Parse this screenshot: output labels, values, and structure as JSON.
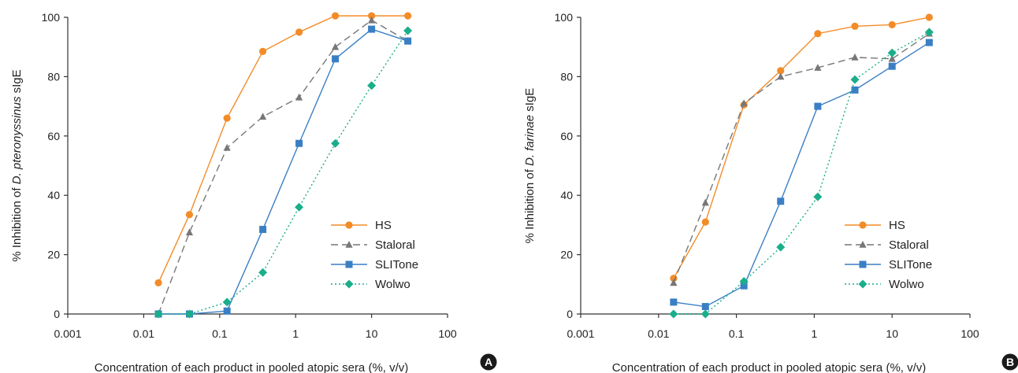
{
  "chart_data": [
    {
      "type": "line",
      "panel": "A",
      "xscale": "log",
      "xlim": [
        0.001,
        100
      ],
      "ylim": [
        0,
        100
      ],
      "x_ticks": [
        "0.001",
        "0.01",
        "0.1",
        "1",
        "10",
        "100"
      ],
      "y_ticks": [
        "0",
        "20",
        "40",
        "60",
        "80",
        "100"
      ],
      "xlabel": "Concentration of each product in pooled atopic sera (%, v/v)",
      "ylabel_prefix": "% Inhibition of ",
      "ylabel_species": "D. pteronyssinus",
      "ylabel_suffix": " sIgE",
      "legend_position": "bottom-right",
      "grid": false,
      "series": [
        {
          "name": "HS",
          "color": "#F28C28",
          "marker": "circle",
          "dash": "solid",
          "x": [
            0.0156,
            0.04,
            0.125,
            0.37,
            1.11,
            3.33,
            10,
            30
          ],
          "y": [
            10.5,
            33.5,
            66,
            88.5,
            95,
            100.5,
            100.5,
            100.5
          ]
        },
        {
          "name": "Staloral",
          "color": "#777777",
          "marker": "triangle",
          "dash": "dashed",
          "x": [
            0.0156,
            0.04,
            0.125,
            0.37,
            1.11,
            3.33,
            10,
            30
          ],
          "y": [
            0,
            27.5,
            56,
            66.5,
            73,
            90,
            99,
            92
          ]
        },
        {
          "name": "SLITone",
          "color": "#3A7FC4",
          "marker": "square",
          "dash": "solid",
          "x": [
            0.0156,
            0.04,
            0.125,
            0.37,
            1.11,
            3.33,
            10,
            30
          ],
          "y": [
            0,
            0,
            1,
            28.5,
            57.5,
            86,
            96,
            92
          ]
        },
        {
          "name": "Wolwo",
          "color": "#1AAE8A",
          "marker": "diamond",
          "dash": "dotted",
          "x": [
            0.0156,
            0.04,
            0.125,
            0.37,
            1.11,
            3.33,
            10,
            30
          ],
          "y": [
            0,
            0,
            4,
            14,
            36,
            57.5,
            77,
            95.5
          ]
        }
      ]
    },
    {
      "type": "line",
      "panel": "B",
      "xscale": "log",
      "xlim": [
        0.001,
        100
      ],
      "ylim": [
        0,
        100
      ],
      "x_ticks": [
        "0.001",
        "0.01",
        "0.1",
        "1",
        "10",
        "100"
      ],
      "y_ticks": [
        "0",
        "20",
        "40",
        "60",
        "80",
        "100"
      ],
      "xlabel": "Concentration of each product in pooled atopic sera (%, v/v)",
      "ylabel_prefix": "% Inhibition of ",
      "ylabel_species": "D. farinae",
      "ylabel_suffix": " sIgE",
      "legend_position": "bottom-right",
      "grid": false,
      "series": [
        {
          "name": "HS",
          "color": "#F28C28",
          "marker": "circle",
          "dash": "solid",
          "x": [
            0.0156,
            0.04,
            0.125,
            0.37,
            1.11,
            3.33,
            10,
            30
          ],
          "y": [
            12,
            31,
            70.5,
            82,
            94.5,
            97,
            97.5,
            100
          ]
        },
        {
          "name": "Staloral",
          "color": "#777777",
          "marker": "triangle",
          "dash": "dashed",
          "x": [
            0.0156,
            0.04,
            0.125,
            0.37,
            1.11,
            3.33,
            10,
            30
          ],
          "y": [
            10.5,
            37.5,
            71,
            80,
            83,
            86.5,
            86,
            94.5
          ]
        },
        {
          "name": "SLITone",
          "color": "#3A7FC4",
          "marker": "square",
          "dash": "solid",
          "x": [
            0.0156,
            0.04,
            0.125,
            0.37,
            1.11,
            3.33,
            10,
            30
          ],
          "y": [
            4,
            2.5,
            9.5,
            38,
            70,
            75.5,
            83.5,
            91.5
          ]
        },
        {
          "name": "Wolwo",
          "color": "#1AAE8A",
          "marker": "diamond",
          "dash": "dotted",
          "x": [
            0.0156,
            0.04,
            0.125,
            0.37,
            1.11,
            3.33,
            10,
            30
          ],
          "y": [
            0,
            0,
            11,
            22.5,
            39.5,
            79,
            88,
            95
          ]
        }
      ]
    }
  ]
}
